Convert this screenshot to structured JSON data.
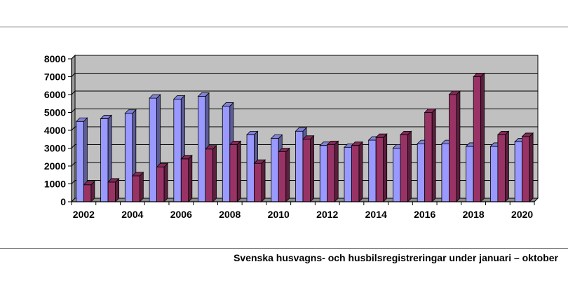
{
  "caption": "Svenska husvagns- och husbilsregistreringar under januari – oktober",
  "chart_data": {
    "type": "bar",
    "title": "",
    "xlabel": "",
    "ylabel": "",
    "x": [
      2002,
      2003,
      2004,
      2005,
      2006,
      2007,
      2008,
      2009,
      2010,
      2011,
      2012,
      2013,
      2014,
      2015,
      2016,
      2017,
      2018,
      2019,
      2020
    ],
    "x_tick_labels": [
      "2002",
      "2004",
      "2006",
      "2008",
      "2010",
      "2012",
      "2014",
      "2016",
      "2018",
      "2020"
    ],
    "y_tick_labels": [
      "0",
      "1000",
      "2000",
      "3000",
      "4000",
      "5000",
      "6000",
      "7000",
      "8000"
    ],
    "ylim": [
      0,
      8000
    ],
    "grid": true,
    "legend": "none",
    "series": [
      {
        "color": "#9999ff",
        "values": [
          4500,
          4650,
          4950,
          5800,
          5750,
          5900,
          5350,
          3750,
          3550,
          3950,
          3150,
          3050,
          3450,
          3000,
          3250,
          3250,
          3100,
          3100,
          3350
        ]
      },
      {
        "color": "#993366",
        "values": [
          950,
          1100,
          1450,
          1950,
          2400,
          2950,
          3200,
          2150,
          2800,
          3500,
          3200,
          3150,
          3600,
          3750,
          5000,
          6000,
          7000,
          3750,
          3650
        ]
      }
    ],
    "plot_background": "#c0c0c0"
  }
}
